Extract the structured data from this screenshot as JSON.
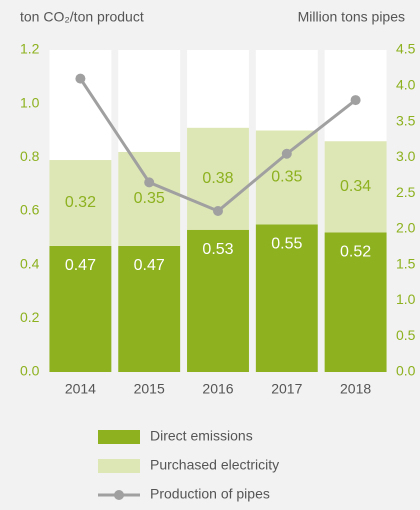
{
  "chart_data": {
    "type": "bar",
    "stacked": true,
    "y_label": "ton CO₂/ton product",
    "y2_label": "Million tons pipes",
    "categories": [
      "2014",
      "2015",
      "2016",
      "2017",
      "2018"
    ],
    "series": [
      {
        "name": "Direct emissions",
        "color": "#8db11f",
        "values": [
          0.47,
          0.47,
          0.53,
          0.55,
          0.52
        ]
      },
      {
        "name": "Purchased electricity",
        "color": "#dde7b6",
        "values": [
          0.32,
          0.35,
          0.38,
          0.35,
          0.34
        ]
      },
      {
        "name": "Production of pipes",
        "color": "#a0a0a0",
        "type": "line",
        "axis": "y2",
        "values": [
          4.1,
          2.65,
          2.25,
          3.05,
          3.8
        ]
      }
    ],
    "ylim": [
      0,
      1.2
    ],
    "yticks": [
      {
        "value": 0,
        "label": "0.0"
      },
      0.2,
      0.4,
      0.6,
      0.8,
      {
        "value": 1,
        "label": "1.0"
      },
      1.2
    ],
    "y2lim": [
      0,
      4.5
    ],
    "y2ticks": [
      {
        "value": 0,
        "label": "0.0"
      },
      0.5,
      {
        "value": 1,
        "label": "1.0"
      },
      1.5,
      {
        "value": 2,
        "label": "2.0"
      },
      2.5,
      {
        "value": 3,
        "label": "3.0"
      },
      3.5,
      {
        "value": 4,
        "label": "4.0"
      },
      4.5
    ],
    "tick_color": "#8db11f"
  }
}
